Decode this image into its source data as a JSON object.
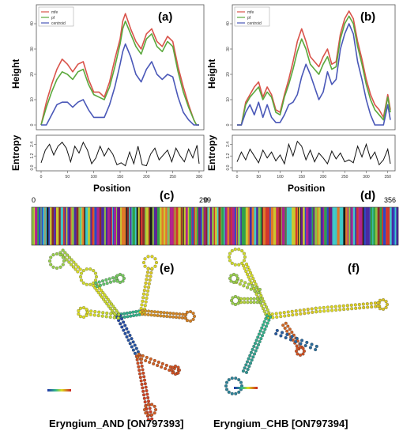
{
  "chart_data": [
    {
      "panel": "(a)",
      "type": "line",
      "ylabel": "Height",
      "entropy_label": "Entropy",
      "xlabel": "Position",
      "xlim": [
        0,
        300
      ],
      "ylim": [
        0,
        45
      ],
      "x_ticks": [
        "0",
        "50",
        "100",
        "150",
        "200",
        "250",
        "300"
      ],
      "y_ticks": [
        "0",
        "10",
        "20",
        "30",
        "40"
      ],
      "entropy_ylim": [
        0,
        3.0
      ],
      "entropy_ticks": [
        "0.0",
        "1.2",
        "2.4"
      ],
      "legend": [
        "mfe",
        "pf",
        "centroid"
      ],
      "series": [
        {
          "name": "mfe",
          "color": "#d9534a",
          "x": [
            0,
            10,
            20,
            30,
            40,
            50,
            60,
            70,
            80,
            90,
            100,
            110,
            120,
            130,
            140,
            150,
            155,
            160,
            170,
            180,
            190,
            200,
            210,
            220,
            230,
            240,
            250,
            260,
            270,
            280,
            290,
            295,
            300
          ],
          "values": [
            0,
            9,
            16,
            22,
            26,
            24,
            21,
            24,
            25,
            18,
            13,
            13,
            11,
            17,
            26,
            34,
            41,
            44,
            38,
            33,
            30,
            36,
            38,
            33,
            31,
            35,
            33,
            23,
            15,
            8,
            2,
            0,
            0
          ]
        },
        {
          "name": "pf",
          "color": "#5aa83c",
          "x": [
            0,
            10,
            20,
            30,
            40,
            50,
            60,
            70,
            80,
            90,
            100,
            110,
            120,
            130,
            140,
            150,
            155,
            160,
            170,
            180,
            190,
            200,
            210,
            220,
            230,
            240,
            250,
            260,
            270,
            280,
            290,
            295,
            300
          ],
          "values": [
            0,
            7,
            13,
            18,
            21,
            20,
            18,
            21,
            22,
            16,
            12,
            11,
            10,
            15,
            23,
            32,
            38,
            41,
            36,
            31,
            28,
            34,
            36,
            31,
            29,
            33,
            31,
            21,
            13,
            7,
            2,
            0,
            0
          ]
        },
        {
          "name": "centroid",
          "color": "#4a58b8",
          "x": [
            0,
            10,
            20,
            30,
            40,
            50,
            60,
            70,
            80,
            90,
            100,
            110,
            120,
            130,
            140,
            150,
            155,
            160,
            170,
            180,
            190,
            200,
            210,
            220,
            230,
            240,
            250,
            260,
            270,
            280,
            290,
            295,
            300
          ],
          "values": [
            0,
            0,
            4,
            8,
            9,
            9,
            7,
            9,
            10,
            6,
            3,
            3,
            3,
            8,
            15,
            24,
            29,
            32,
            27,
            20,
            17,
            22,
            25,
            20,
            18,
            20,
            19,
            11,
            5,
            2,
            0,
            0,
            0
          ]
        }
      ],
      "entropy": {
        "x": [
          0,
          8,
          16,
          24,
          32,
          40,
          48,
          56,
          64,
          72,
          80,
          88,
          96,
          104,
          112,
          120,
          128,
          136,
          144,
          152,
          160,
          168,
          176,
          184,
          192,
          200,
          208,
          216,
          224,
          232,
          240,
          248,
          256,
          264,
          272,
          280,
          288,
          296,
          300
        ],
        "values": [
          0.5,
          1.8,
          2.4,
          1.3,
          2.2,
          2.6,
          2.0,
          0.6,
          2.2,
          1.5,
          2.6,
          1.8,
          0.4,
          1.0,
          2.2,
          1.2,
          2.0,
          1.4,
          0.3,
          0.5,
          0.2,
          1.6,
          0.4,
          2.2,
          0.3,
          0.2,
          1.4,
          2.0,
          0.8,
          1.3,
          1.8,
          0.6,
          2.0,
          1.2,
          0.6,
          1.9,
          1.0,
          2.3,
          0.4
        ]
      }
    },
    {
      "panel": "(b)",
      "type": "line",
      "ylabel": "Height",
      "entropy_label": "Entropy",
      "xlabel": "Position",
      "xlim": [
        0,
        356
      ],
      "ylim": [
        0,
        45
      ],
      "x_ticks": [
        "0",
        "50",
        "100",
        "150",
        "200",
        "250",
        "300",
        "350"
      ],
      "y_ticks": [
        "0",
        "10",
        "20",
        "30",
        "40"
      ],
      "entropy_ylim": [
        0,
        3.0
      ],
      "entropy_ticks": [
        "0.0",
        "1.2",
        "2.4"
      ],
      "legend": [
        "mfe",
        "pf",
        "centroid"
      ],
      "series": [
        {
          "name": "mfe",
          "color": "#d9534a",
          "x": [
            0,
            10,
            20,
            30,
            40,
            50,
            60,
            70,
            80,
            90,
            100,
            110,
            120,
            130,
            140,
            150,
            160,
            170,
            180,
            190,
            200,
            210,
            220,
            230,
            240,
            250,
            260,
            270,
            280,
            290,
            300,
            310,
            320,
            330,
            340,
            350,
            356
          ],
          "values": [
            0,
            0,
            9,
            12,
            15,
            17,
            11,
            15,
            12,
            6,
            5,
            12,
            18,
            25,
            33,
            38,
            33,
            27,
            25,
            23,
            27,
            30,
            24,
            25,
            36,
            42,
            45,
            42,
            33,
            26,
            18,
            12,
            8,
            6,
            3,
            12,
            6
          ]
        },
        {
          "name": "pf",
          "color": "#5aa83c",
          "x": [
            0,
            10,
            20,
            30,
            40,
            50,
            60,
            70,
            80,
            90,
            100,
            110,
            120,
            130,
            140,
            150,
            160,
            170,
            180,
            190,
            200,
            210,
            220,
            230,
            240,
            250,
            260,
            270,
            280,
            290,
            300,
            310,
            320,
            330,
            340,
            350,
            356
          ],
          "values": [
            0,
            0,
            8,
            11,
            13,
            15,
            10,
            13,
            11,
            5,
            4,
            11,
            16,
            22,
            29,
            34,
            30,
            24,
            22,
            20,
            24,
            27,
            22,
            23,
            34,
            40,
            43,
            40,
            31,
            24,
            16,
            10,
            6,
            4,
            2,
            11,
            5
          ]
        },
        {
          "name": "centroid",
          "color": "#4a58b8",
          "x": [
            0,
            10,
            20,
            30,
            40,
            50,
            60,
            70,
            80,
            90,
            100,
            110,
            120,
            130,
            140,
            150,
            160,
            170,
            180,
            190,
            200,
            210,
            220,
            230,
            240,
            250,
            260,
            270,
            280,
            290,
            300,
            310,
            320,
            330,
            340,
            350,
            356
          ],
          "values": [
            0,
            0,
            5,
            8,
            4,
            9,
            3,
            8,
            3,
            1,
            1,
            4,
            8,
            9,
            12,
            19,
            24,
            20,
            15,
            10,
            13,
            21,
            16,
            18,
            30,
            36,
            40,
            36,
            25,
            18,
            10,
            4,
            0,
            0,
            0,
            8,
            2
          ]
        }
      ],
      "entropy": {
        "x": [
          0,
          10,
          20,
          30,
          40,
          50,
          60,
          70,
          80,
          90,
          100,
          110,
          120,
          130,
          140,
          150,
          160,
          170,
          180,
          190,
          200,
          210,
          220,
          230,
          240,
          250,
          260,
          270,
          280,
          290,
          300,
          310,
          320,
          330,
          340,
          350,
          356
        ],
        "values": [
          0.6,
          1.6,
          0.8,
          1.9,
          1.2,
          0.5,
          1.8,
          1.0,
          1.6,
          0.7,
          1.3,
          0.4,
          2.4,
          1.2,
          2.7,
          2.2,
          0.8,
          1.8,
          0.6,
          1.5,
          1.0,
          0.4,
          1.7,
          0.9,
          1.5,
          0.6,
          0.8,
          0.5,
          2.2,
          1.1,
          2.4,
          0.9,
          1.6,
          0.3,
          0.8,
          1.9,
          0.4
        ]
      }
    }
  ],
  "bars": [
    {
      "panel": "(c)",
      "start": "0",
      "end": "299"
    },
    {
      "panel": "(d)",
      "start": "0",
      "end": "356"
    }
  ],
  "structures": [
    {
      "panel": "(e)",
      "caption": "Eryngium_AND [ON797393]"
    },
    {
      "panel": "(f)",
      "caption": "Eryngium_CHB [ON797394]"
    }
  ]
}
